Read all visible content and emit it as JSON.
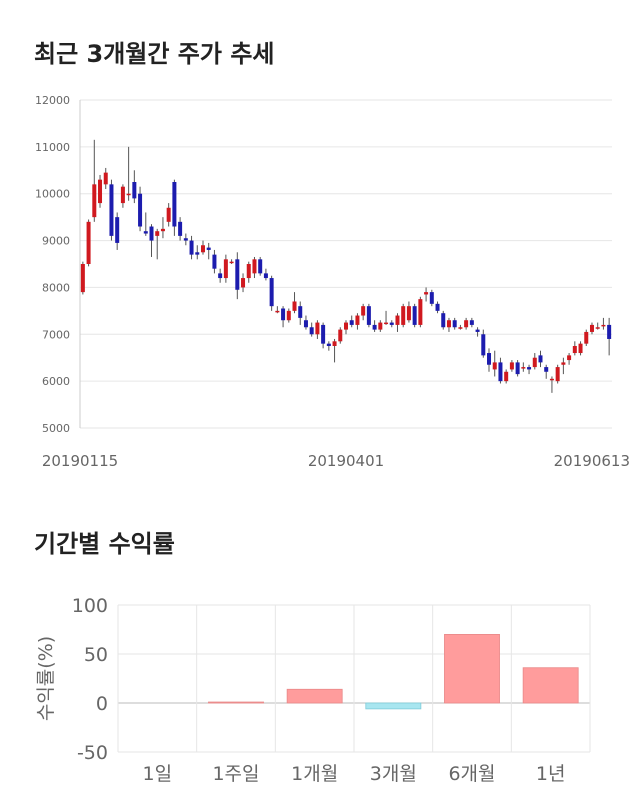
{
  "sections": {
    "price_title": "최근 3개월간 주가 추세",
    "returns_title": "기간별 수익률"
  },
  "colors": {
    "up": "#d0191f",
    "down": "#1c1cae",
    "wick": "#555555",
    "positive_bar": "#ff9c9c",
    "negative_bar": "#a8e6f0",
    "grid": "#e6e6e6"
  },
  "chart_data": [
    {
      "type": "candlestick",
      "title": "최근 3개월간 주가 추세",
      "x_tick_labels": [
        "20190115",
        "20190401",
        "20190613"
      ],
      "y_ticks": [
        5000,
        6000,
        7000,
        8000,
        9000,
        10000,
        11000,
        12000
      ],
      "ylim": [
        5000,
        12000
      ],
      "grid": true,
      "candles": [
        [
          7900,
          8500,
          7850,
          8550
        ],
        [
          8500,
          9400,
          8450,
          9450
        ],
        [
          9500,
          10200,
          9400,
          11150
        ],
        [
          9800,
          10300,
          9700,
          10400
        ],
        [
          10200,
          10450,
          10100,
          10550
        ],
        [
          10200,
          9100,
          9000,
          10300
        ],
        [
          9500,
          8950,
          8800,
          9600
        ],
        [
          9800,
          10150,
          9700,
          10200
        ],
        [
          10000,
          10000,
          9850,
          11000
        ],
        [
          10250,
          9900,
          9800,
          10500
        ],
        [
          10000,
          9300,
          9200,
          10150
        ],
        [
          9200,
          9150,
          9100,
          9600
        ],
        [
          9300,
          9000,
          8650,
          9350
        ],
        [
          9100,
          9200,
          8600,
          9250
        ],
        [
          9200,
          9250,
          9050,
          9500
        ],
        [
          9400,
          9700,
          9300,
          9800
        ],
        [
          10250,
          9300,
          9100,
          10300
        ],
        [
          9400,
          9100,
          9000,
          9500
        ],
        [
          9050,
          9000,
          8900,
          9150
        ],
        [
          9000,
          8700,
          8600,
          9100
        ],
        [
          8750,
          8700,
          8600,
          8900
        ],
        [
          8750,
          8900,
          8700,
          9000
        ],
        [
          8850,
          8800,
          8600,
          8950
        ],
        [
          8700,
          8400,
          8300,
          8800
        ],
        [
          8300,
          8200,
          8100,
          8400
        ],
        [
          8200,
          8600,
          8100,
          8700
        ],
        [
          8550,
          8550,
          8500,
          8600
        ],
        [
          8600,
          7950,
          7750,
          8750
        ],
        [
          8000,
          8200,
          7900,
          8300
        ],
        [
          8200,
          8500,
          8100,
          8550
        ],
        [
          8300,
          8600,
          8200,
          8650
        ],
        [
          8600,
          8300,
          8250,
          8650
        ],
        [
          8300,
          8200,
          8150,
          8400
        ],
        [
          8200,
          7600,
          7500,
          8250
        ],
        [
          7500,
          7500,
          7450,
          7600
        ],
        [
          7550,
          7300,
          7150,
          7600
        ],
        [
          7300,
          7500,
          7250,
          7550
        ],
        [
          7500,
          7700,
          7450,
          7900
        ],
        [
          7600,
          7350,
          7200,
          7700
        ],
        [
          7300,
          7150,
          7100,
          7400
        ],
        [
          7150,
          7000,
          6950,
          7250
        ],
        [
          7000,
          7250,
          6900,
          7300
        ],
        [
          7200,
          6800,
          6700,
          7250
        ],
        [
          6800,
          6750,
          6650,
          6850
        ],
        [
          6750,
          6850,
          6400,
          6900
        ],
        [
          6850,
          7100,
          6800,
          7150
        ],
        [
          7100,
          7250,
          7000,
          7300
        ],
        [
          7300,
          7200,
          7150,
          7400
        ],
        [
          7200,
          7400,
          7100,
          7450
        ],
        [
          7400,
          7600,
          7300,
          7650
        ],
        [
          7600,
          7200,
          7150,
          7650
        ],
        [
          7200,
          7100,
          7050,
          7300
        ],
        [
          7100,
          7250,
          7050,
          7300
        ],
        [
          7250,
          7250,
          7200,
          7500
        ],
        [
          7250,
          7200,
          7150,
          7300
        ],
        [
          7200,
          7400,
          7050,
          7450
        ],
        [
          7200,
          7600,
          7150,
          7650
        ],
        [
          7300,
          7600,
          7250,
          7700
        ],
        [
          7600,
          7200,
          7150,
          7650
        ],
        [
          7200,
          7750,
          7150,
          7800
        ],
        [
          7850,
          7900,
          7700,
          8000
        ],
        [
          7900,
          7650,
          7600,
          7950
        ],
        [
          7650,
          7500,
          7450,
          7700
        ],
        [
          7450,
          7150,
          7100,
          7500
        ],
        [
          7150,
          7300,
          7050,
          7350
        ],
        [
          7300,
          7150,
          7100,
          7350
        ],
        [
          7150,
          7150,
          7100,
          7200
        ],
        [
          7150,
          7300,
          7100,
          7350
        ],
        [
          7300,
          7200,
          7150,
          7350
        ],
        [
          7100,
          7050,
          6950,
          7150
        ],
        [
          7000,
          6550,
          6500,
          7100
        ],
        [
          6600,
          6350,
          6200,
          6700
        ],
        [
          6250,
          6400,
          6100,
          6650
        ],
        [
          6400,
          6000,
          5950,
          6500
        ],
        [
          6000,
          6200,
          5950,
          6250
        ],
        [
          6250,
          6400,
          6200,
          6450
        ],
        [
          6400,
          6150,
          6100,
          6450
        ],
        [
          6300,
          6300,
          6200,
          6400
        ],
        [
          6300,
          6250,
          6150,
          6350
        ],
        [
          6300,
          6500,
          6250,
          6600
        ],
        [
          6550,
          6400,
          6300,
          6650
        ],
        [
          6300,
          6200,
          6050,
          6350
        ],
        [
          6050,
          6050,
          5750,
          6100
        ],
        [
          6000,
          6300,
          5950,
          6350
        ],
        [
          6350,
          6400,
          6150,
          6500
        ],
        [
          6450,
          6550,
          6350,
          6600
        ],
        [
          6600,
          6750,
          6550,
          6850
        ],
        [
          6600,
          6800,
          6550,
          6850
        ],
        [
          6800,
          7050,
          6750,
          7100
        ],
        [
          7050,
          7200,
          7000,
          7250
        ],
        [
          7150,
          7150,
          7100,
          7250
        ],
        [
          7200,
          7200,
          7100,
          7350
        ],
        [
          7200,
          6900,
          6550,
          7350
        ]
      ]
    },
    {
      "type": "bar",
      "title": "기간별 수익률",
      "ylabel": "수익률(%)",
      "categories": [
        "1일",
        "1주일",
        "1개월",
        "3개월",
        "6개월",
        "1년"
      ],
      "values": [
        0,
        1,
        14,
        -6,
        70,
        36
      ],
      "ylim": [
        -50,
        100
      ],
      "y_ticks": [
        100,
        50,
        0,
        -50
      ],
      "grid": true
    }
  ]
}
